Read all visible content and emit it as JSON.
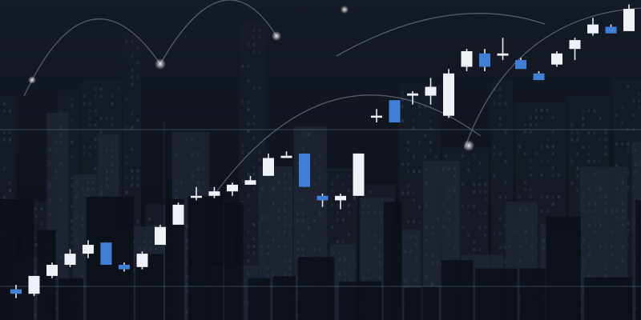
{
  "scene": {
    "palette": {
      "sky": "#111722",
      "building_dark": "#0b0f16",
      "building_mid": "#161c27",
      "building_light": "#1f2633",
      "window": "#2a3342",
      "arc": "#8a93a3",
      "grid": "#5c6b82",
      "candle_up": "#eef1f5",
      "candle_down": "#3f7fd6",
      "wick": "#e6eaf0"
    },
    "candles": [
      {
        "o": 82,
        "c": 80,
        "h": 84,
        "l": 78
      },
      {
        "o": 80,
        "c": 88,
        "h": 88,
        "l": 79
      },
      {
        "o": 88,
        "c": 93,
        "h": 94,
        "l": 87
      },
      {
        "o": 93,
        "c": 98,
        "h": 100,
        "l": 92
      },
      {
        "o": 98,
        "c": 102,
        "h": 104,
        "l": 96
      },
      {
        "o": 103,
        "c": 93,
        "h": 103,
        "l": 93
      },
      {
        "o": 93,
        "c": 91,
        "h": 94,
        "l": 90
      },
      {
        "o": 92,
        "c": 98,
        "h": 99,
        "l": 91
      },
      {
        "o": 102,
        "c": 110,
        "h": 111,
        "l": 102
      },
      {
        "o": 111,
        "c": 120,
        "h": 121,
        "l": 111
      },
      {
        "o": 124,
        "c": 124,
        "h": 128,
        "l": 122
      },
      {
        "o": 124,
        "c": 126,
        "h": 128,
        "l": 123
      },
      {
        "o": 126,
        "c": 129,
        "h": 130,
        "l": 124
      },
      {
        "o": 129,
        "c": 131,
        "h": 133,
        "l": 129
      },
      {
        "o": 133,
        "c": 141,
        "h": 143,
        "l": 133
      },
      {
        "o": 141,
        "c": 142,
        "h": 144,
        "l": 141
      },
      {
        "o": 143,
        "c": 128,
        "h": 143,
        "l": 128
      },
      {
        "o": 124,
        "c": 122,
        "h": 125,
        "l": 119
      },
      {
        "o": 122,
        "c": 124,
        "h": 125,
        "l": 118
      },
      {
        "o": 124,
        "c": 143,
        "h": 143,
        "l": 124
      },
      {
        "o": 160,
        "c": 160,
        "h": 163,
        "l": 157
      },
      {
        "o": 167,
        "c": 157,
        "h": 167,
        "l": 157
      },
      {
        "o": 169,
        "c": 170,
        "h": 171,
        "l": 165
      },
      {
        "o": 169,
        "c": 173,
        "h": 177,
        "l": 165
      },
      {
        "o": 160,
        "c": 179,
        "h": 181,
        "l": 159
      },
      {
        "o": 182,
        "c": 189,
        "h": 190,
        "l": 180
      },
      {
        "o": 188,
        "c": 182,
        "h": 190,
        "l": 180
      },
      {
        "o": 187,
        "c": 188,
        "h": 195,
        "l": 185
      },
      {
        "o": 185,
        "c": 181,
        "h": 186,
        "l": 181
      },
      {
        "o": 179,
        "c": 176,
        "h": 180,
        "l": 176
      },
      {
        "o": 183,
        "c": 188,
        "h": 189,
        "l": 182
      },
      {
        "o": 190,
        "c": 194,
        "h": 195,
        "l": 185
      },
      {
        "o": 197,
        "c": 201,
        "h": 204,
        "l": 196
      },
      {
        "o": 200,
        "c": 197,
        "h": 201,
        "l": 197
      },
      {
        "o": 198,
        "c": 208,
        "h": 210,
        "l": 198
      }
    ]
  }
}
